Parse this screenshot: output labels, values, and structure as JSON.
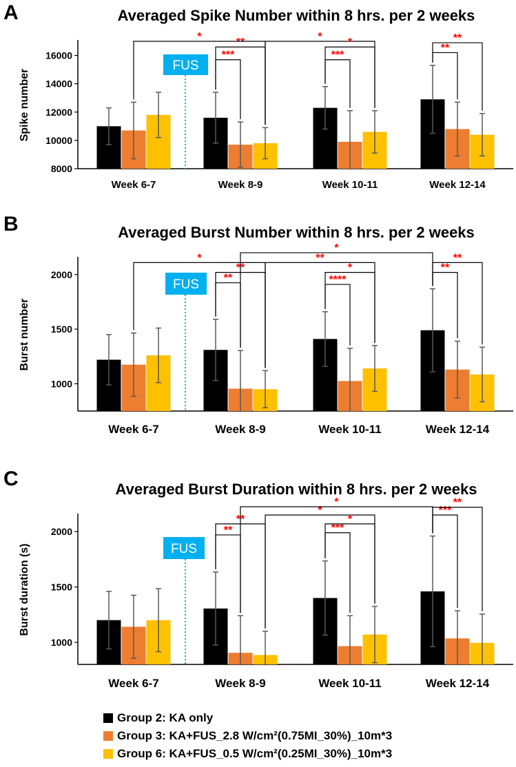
{
  "colors": {
    "group2": "#000000",
    "group3": "#ED7D31",
    "group6": "#FFC000",
    "sig": "#FF0000",
    "fus_bg": "#00B0F0",
    "fus_line": "#00B0F0",
    "bracket": "#000000",
    "errorbar": "#595959"
  },
  "legend": [
    {
      "label": "Group 2: KA only",
      "color": "#000000"
    },
    {
      "label": "Group 3: KA+FUS_2.8 W/cm²(0.75MI_30%)_10m*3",
      "color": "#ED7D31"
    },
    {
      "label": "Group 6: KA+FUS_0.5 W/cm²(0.25MI_30%)_10m*3",
      "color": "#FFC000"
    }
  ],
  "chart_data": [
    {
      "panel": "A",
      "type": "bar",
      "title": "Averaged Spike Number within 8 hrs. per 2 weeks",
      "ylabel": "Spike number",
      "xlabel": "",
      "ylim": [
        8000,
        17000
      ],
      "yticks": [
        8000,
        10000,
        12000,
        14000,
        16000
      ],
      "categories": [
        "Week 6-7",
        "Week 8-9",
        "Week 10-11",
        "Week 12-14"
      ],
      "fus_label": "FUS",
      "series": [
        {
          "name": "Group 2: KA only",
          "values": [
            11000,
            11600,
            12300,
            12900
          ],
          "errors": [
            1300,
            1800,
            1500,
            2400
          ]
        },
        {
          "name": "Group 3: KA+FUS_2.8 W/cm²(0.75MI_30%)_10m*3",
          "values": [
            10700,
            9700,
            9900,
            10800
          ],
          "errors": [
            2000,
            1600,
            2200,
            1900
          ]
        },
        {
          "name": "Group 6: KA+FUS_0.5 W/cm²(0.25MI_30%)_10m*3",
          "values": [
            11800,
            9800,
            10600,
            10400
          ],
          "errors": [
            1600,
            1100,
            1500,
            1500
          ]
        }
      ],
      "significance": [
        {
          "label": "***",
          "from": [
            1,
            0
          ],
          "to": [
            1,
            1
          ],
          "level": 15700
        },
        {
          "label": "**",
          "from": [
            1,
            0
          ],
          "to": [
            1,
            2
          ],
          "level": 16600
        },
        {
          "label": "*",
          "from": [
            0,
            1
          ],
          "to": [
            1,
            2
          ],
          "level": 17000
        },
        {
          "label": "*",
          "from": [
            1,
            2
          ],
          "to": [
            2,
            2
          ],
          "level": 17000
        },
        {
          "label": "***",
          "from": [
            2,
            0
          ],
          "to": [
            2,
            1
          ],
          "level": 15700
        },
        {
          "label": "*",
          "from": [
            2,
            0
          ],
          "to": [
            2,
            2
          ],
          "level": 16600
        },
        {
          "label": "**",
          "from": [
            3,
            0
          ],
          "to": [
            3,
            1
          ],
          "level": 16200
        },
        {
          "label": "**",
          "from": [
            3,
            0
          ],
          "to": [
            3,
            2
          ],
          "level": 16900
        }
      ]
    },
    {
      "panel": "B",
      "type": "bar",
      "title": "Averaged Burst Number within 8 hrs. per 2 weeks",
      "ylabel": "Burst number",
      "xlabel": "",
      "ylim": [
        750,
        2150
      ],
      "yticks": [
        1000,
        1500,
        2000
      ],
      "categories": [
        "Week 6-7",
        "Week 8-9",
        "Week 10-11",
        "Week 12-14"
      ],
      "fus_label": "FUS",
      "series": [
        {
          "name": "Group 2: KA only",
          "values": [
            1220,
            1310,
            1410,
            1490
          ],
          "errors": [
            230,
            280,
            250,
            380
          ]
        },
        {
          "name": "Group 3: KA+FUS_2.8 W/cm²(0.75MI_30%)_10m*3",
          "values": [
            1175,
            955,
            1025,
            1130
          ],
          "errors": [
            290,
            350,
            300,
            260
          ]
        },
        {
          "name": "Group 6: KA+FUS_0.5 W/cm²(0.25MI_30%)_10m*3",
          "values": [
            1260,
            950,
            1140,
            1085
          ],
          "errors": [
            250,
            170,
            210,
            250
          ]
        }
      ],
      "significance": [
        {
          "label": "**",
          "from": [
            1,
            0
          ],
          "to": [
            1,
            1
          ],
          "level": 1925
        },
        {
          "label": "**",
          "from": [
            1,
            0
          ],
          "to": [
            1,
            2
          ],
          "level": 2020
        },
        {
          "label": "*",
          "from": [
            0,
            1
          ],
          "to": [
            1,
            2
          ],
          "level": 2110
        },
        {
          "label": "**",
          "from": [
            1,
            2
          ],
          "to": [
            2,
            2
          ],
          "level": 2110
        },
        {
          "label": "*",
          "from": [
            1,
            1
          ],
          "to": [
            3,
            0
          ],
          "level": 2200
        },
        {
          "label": "****",
          "from": [
            2,
            0
          ],
          "to": [
            2,
            1
          ],
          "level": 1910
        },
        {
          "label": "*",
          "from": [
            2,
            0
          ],
          "to": [
            2,
            2
          ],
          "level": 2020
        },
        {
          "label": "**",
          "from": [
            3,
            0
          ],
          "to": [
            3,
            1
          ],
          "level": 2020
        },
        {
          "label": "**",
          "from": [
            3,
            0
          ],
          "to": [
            3,
            2
          ],
          "level": 2110
        }
      ]
    },
    {
      "panel": "C",
      "type": "bar",
      "title": "Averaged Burst Duration within 8 hrs. per 2 weeks",
      "ylabel": "Burst duration (s)",
      "xlabel": "",
      "ylim": [
        800,
        2150
      ],
      "yticks": [
        1000,
        1500,
        2000
      ],
      "categories": [
        "Week 6-7",
        "Week 8-9",
        "Week 10-11",
        "Week 12-14"
      ],
      "fus_label": "FUS",
      "series": [
        {
          "name": "Group 2: KA only",
          "values": [
            1200,
            1305,
            1400,
            1460
          ],
          "errors": [
            260,
            330,
            335,
            500
          ]
        },
        {
          "name": "Group 3: KA+FUS_2.8 W/cm²(0.75MI_30%)_10m*3",
          "values": [
            1140,
            905,
            965,
            1035
          ],
          "errors": [
            285,
            335,
            275,
            250
          ]
        },
        {
          "name": "Group 6: KA+FUS_0.5 W/cm²(0.25MI_30%)_10m*3",
          "values": [
            1200,
            885,
            1070,
            995
          ],
          "errors": [
            285,
            215,
            255,
            260
          ]
        }
      ],
      "significance": [
        {
          "label": "**",
          "from": [
            1,
            0
          ],
          "to": [
            1,
            1
          ],
          "level": 1970
        },
        {
          "label": "**",
          "from": [
            1,
            0
          ],
          "to": [
            1,
            2
          ],
          "level": 2070
        },
        {
          "label": "*",
          "from": [
            1,
            2
          ],
          "to": [
            2,
            2
          ],
          "level": 2150
        },
        {
          "label": "*",
          "from": [
            1,
            1
          ],
          "to": [
            3,
            0
          ],
          "level": 2270
        },
        {
          "label": "***",
          "from": [
            2,
            0
          ],
          "to": [
            2,
            1
          ],
          "level": 1990
        },
        {
          "label": "*",
          "from": [
            2,
            0
          ],
          "to": [
            2,
            2
          ],
          "level": 2070
        },
        {
          "label": "***",
          "from": [
            3,
            0
          ],
          "to": [
            3,
            1
          ],
          "level": 2150
        },
        {
          "label": "**",
          "from": [
            3,
            0
          ],
          "to": [
            3,
            2
          ],
          "level": 2220
        }
      ]
    }
  ]
}
